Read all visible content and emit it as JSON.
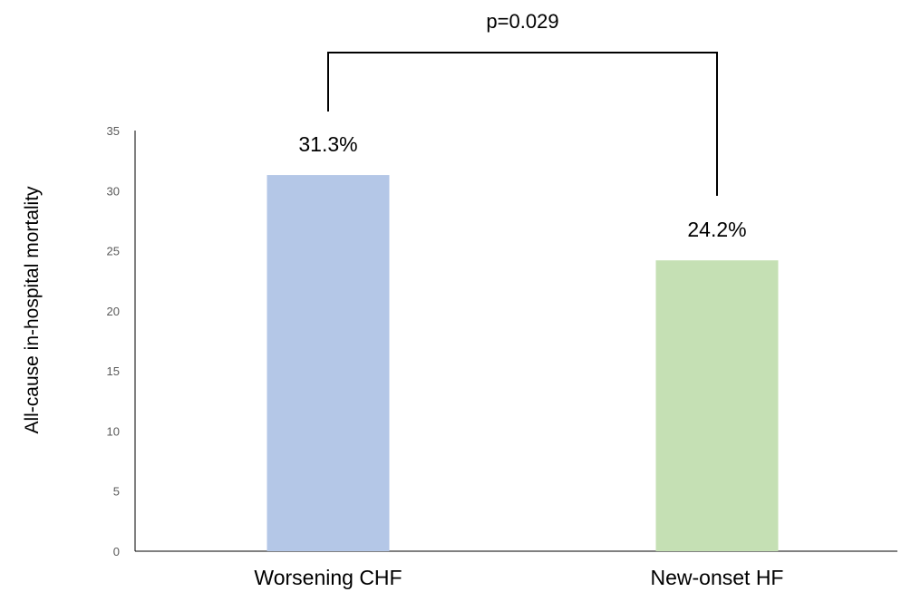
{
  "chart_data": {
    "type": "bar",
    "categories": [
      "Worsening CHF",
      "New-onset HF"
    ],
    "values": [
      31.3,
      24.2
    ],
    "data_labels": [
      "31.3%",
      "24.2%"
    ],
    "colors": [
      "#b4c7e7",
      "#c5e0b4"
    ],
    "title": "",
    "xlabel": "",
    "ylabel": "All-cause in-hospital mortality",
    "ylim": [
      0,
      35
    ],
    "yticks": [
      0,
      5,
      10,
      15,
      20,
      25,
      30,
      35
    ],
    "grid": false,
    "annotations": [
      {
        "text": "p=0.029",
        "type": "significance-bracket",
        "between": [
          "Worsening CHF",
          "New-onset HF"
        ]
      }
    ]
  }
}
